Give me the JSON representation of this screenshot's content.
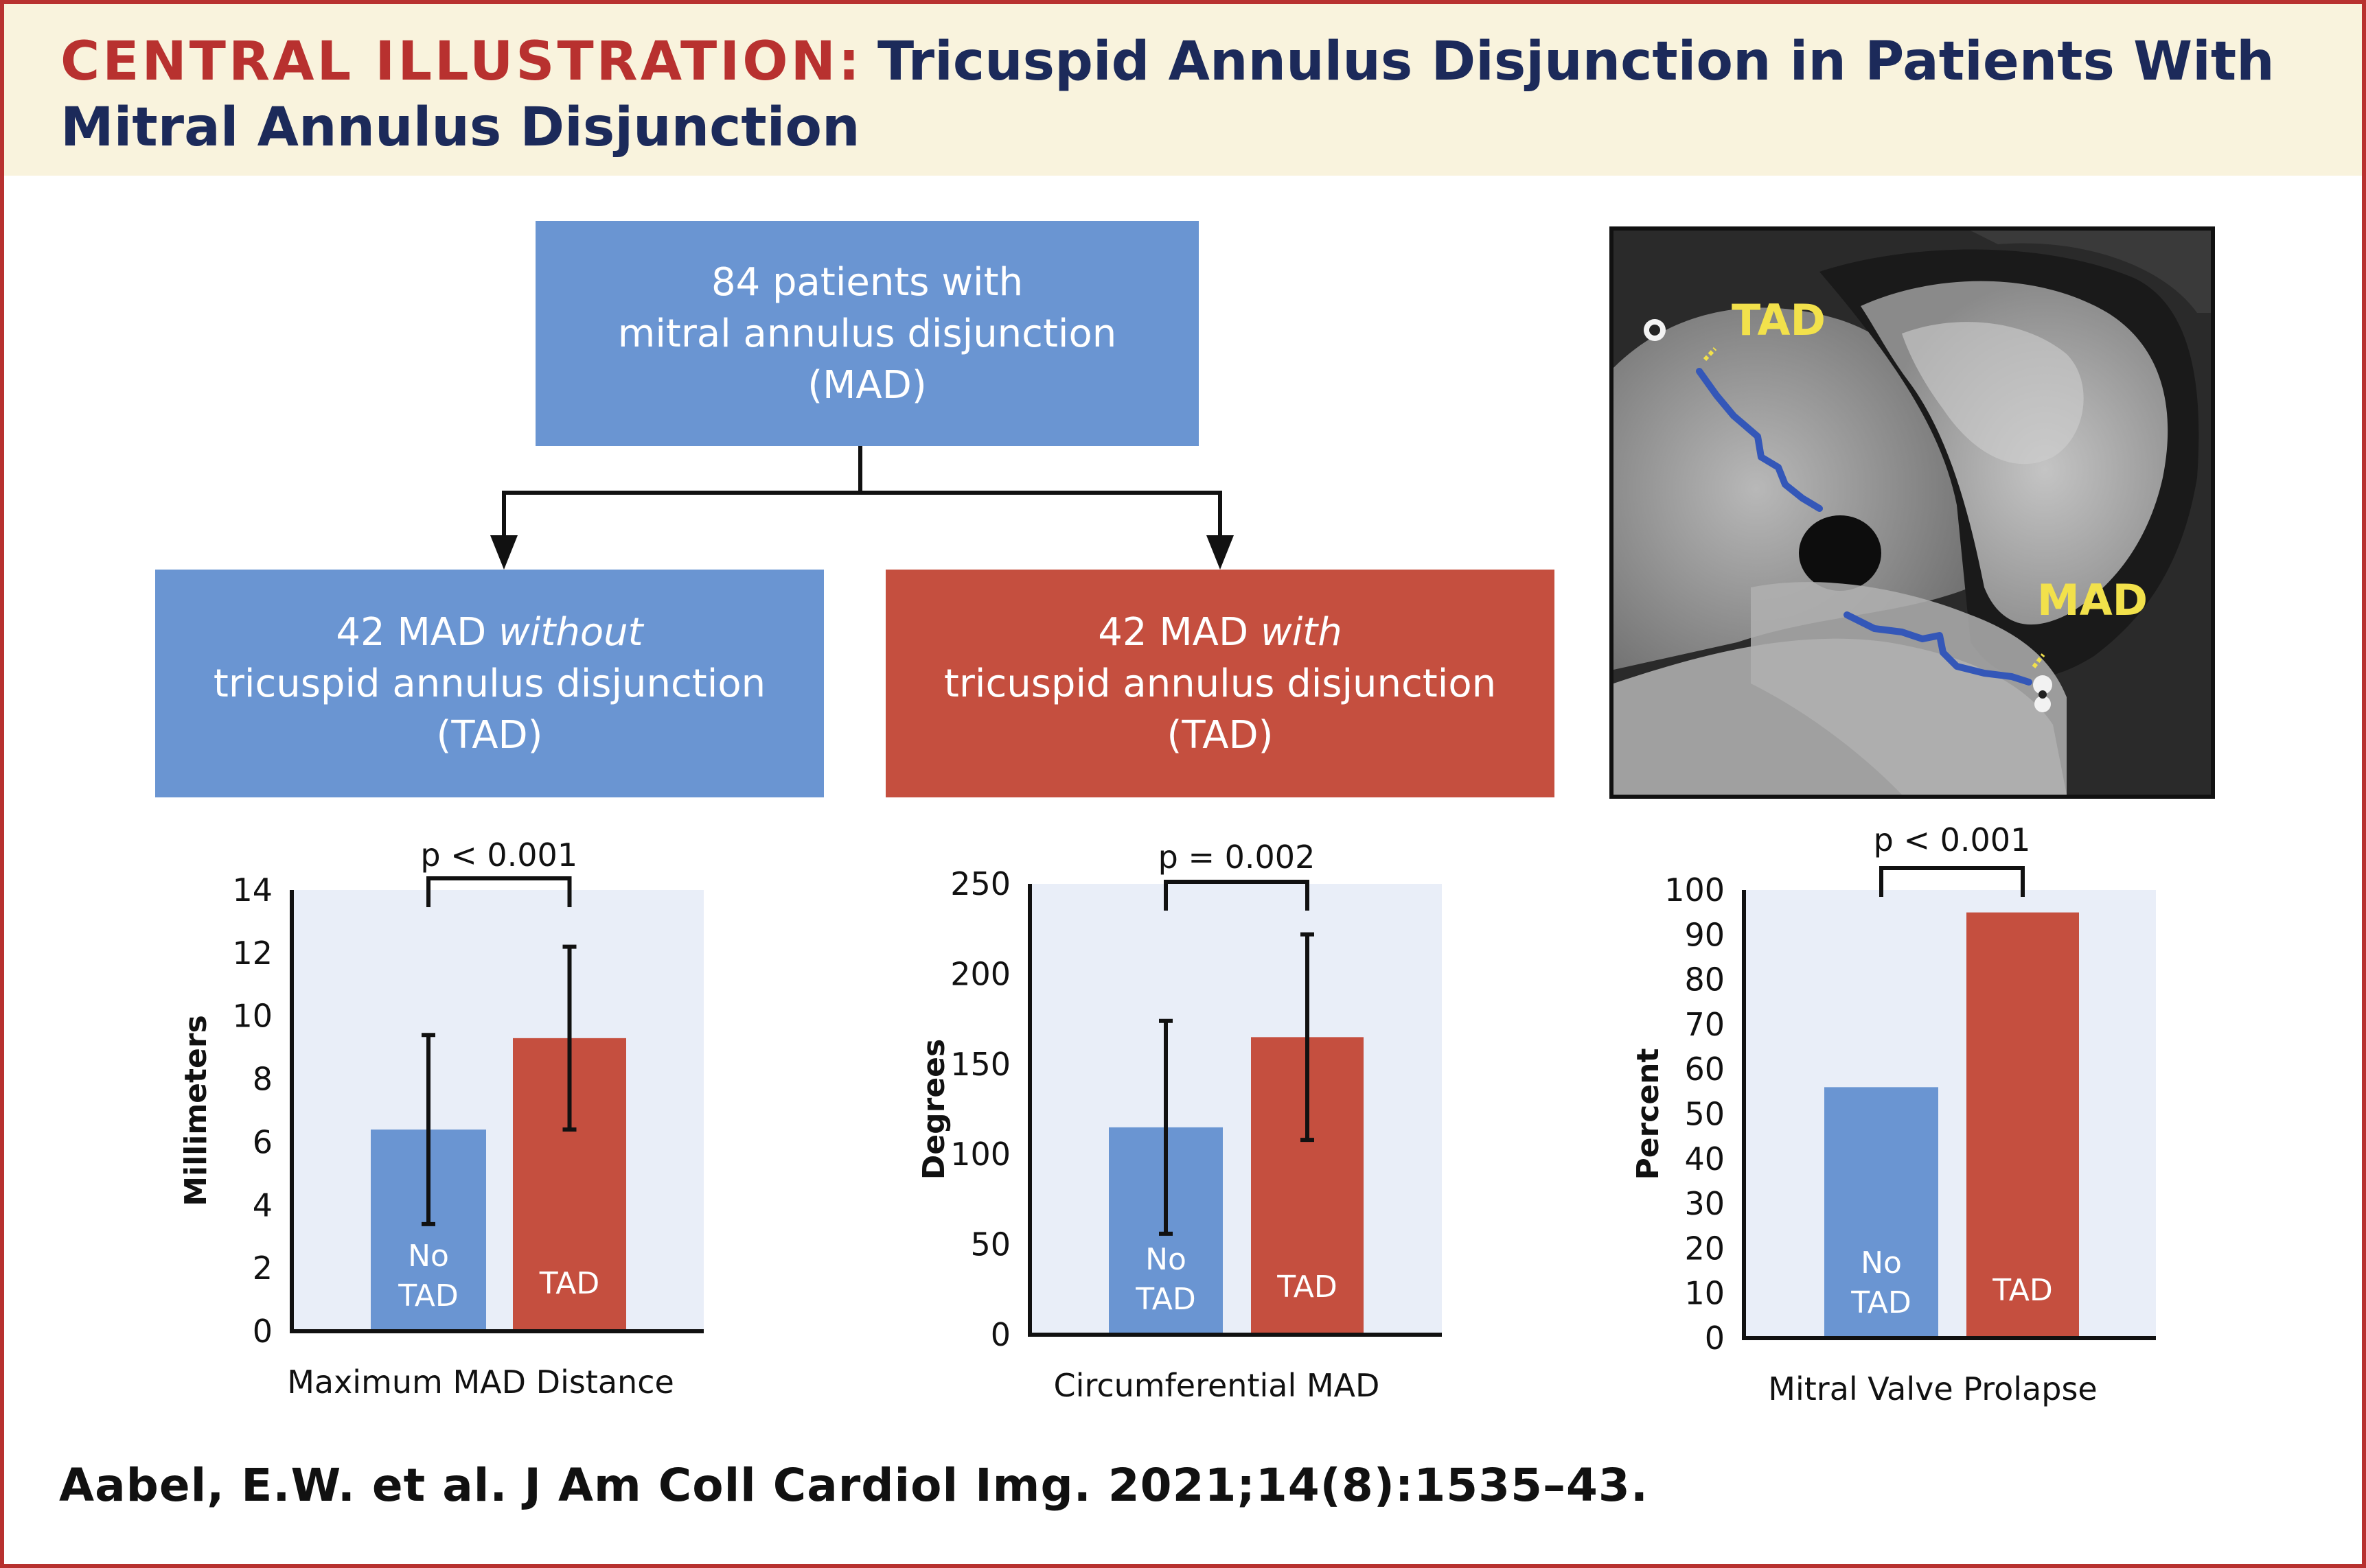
{
  "header": {
    "title_lead": "CENTRAL ILLUSTRATION:",
    "title_rest": "Tricuspid Annulus Disjunction in Patients With Mitral Annulus Disjunction"
  },
  "flow": {
    "top_lines": [
      "84 patients with",
      "mitral annulus disjunction",
      "(MAD)"
    ],
    "left": {
      "prefix": "42 MAD ",
      "emph": "without",
      "line2": "tricuspid annulus disjunction",
      "line3": "(TAD)"
    },
    "right": {
      "prefix": "42 MAD ",
      "emph": "with",
      "line2": "tricuspid annulus disjunction",
      "line3": "(TAD)"
    }
  },
  "image_labels": {
    "tad": "TAD",
    "mad": "MAD"
  },
  "colors": {
    "no_tad": "#6a95d2",
    "tad": "#c54f3f",
    "plot_bg": "#e9eef8",
    "title_red": "#b8312f",
    "title_navy": "#1c2a5a",
    "header_bg": "#f9f3dd"
  },
  "chart_data": [
    {
      "type": "bar",
      "xlabel": "Maximum MAD Distance",
      "ylabel": "Millimeters",
      "ylim": [
        0,
        14
      ],
      "yticks": [
        0,
        2,
        4,
        6,
        8,
        10,
        12,
        14
      ],
      "categories": [
        "No TAD",
        "TAD"
      ],
      "bar_labels": [
        [
          "No",
          "TAD"
        ],
        [
          "TAD"
        ]
      ],
      "values": [
        6.4,
        9.3
      ],
      "errors": [
        3.0,
        2.9
      ],
      "pvalue": "p < 0.001"
    },
    {
      "type": "bar",
      "xlabel": "Circumferential MAD",
      "ylabel": "Degrees",
      "ylim": [
        0,
        250
      ],
      "yticks": [
        0,
        50,
        100,
        150,
        200,
        250
      ],
      "categories": [
        "No TAD",
        "TAD"
      ],
      "bar_labels": [
        [
          "No",
          "TAD"
        ],
        [
          "TAD"
        ]
      ],
      "values": [
        115,
        165
      ],
      "errors": [
        59,
        57
      ],
      "pvalue": "p = 0.002"
    },
    {
      "type": "bar",
      "xlabel": "Mitral Valve Prolapse",
      "ylabel": "Percent",
      "ylim": [
        0,
        100
      ],
      "yticks": [
        0,
        10,
        20,
        30,
        40,
        50,
        60,
        70,
        80,
        90,
        100
      ],
      "categories": [
        "No TAD",
        "TAD"
      ],
      "bar_labels": [
        [
          "No",
          "TAD"
        ],
        [
          "TAD"
        ]
      ],
      "values": [
        56,
        95
      ],
      "errors": null,
      "pvalue": "p < 0.001"
    }
  ],
  "citation": "Aabel, E.W. et al. J Am Coll Cardiol Img. 2021;14(8):1535–43."
}
